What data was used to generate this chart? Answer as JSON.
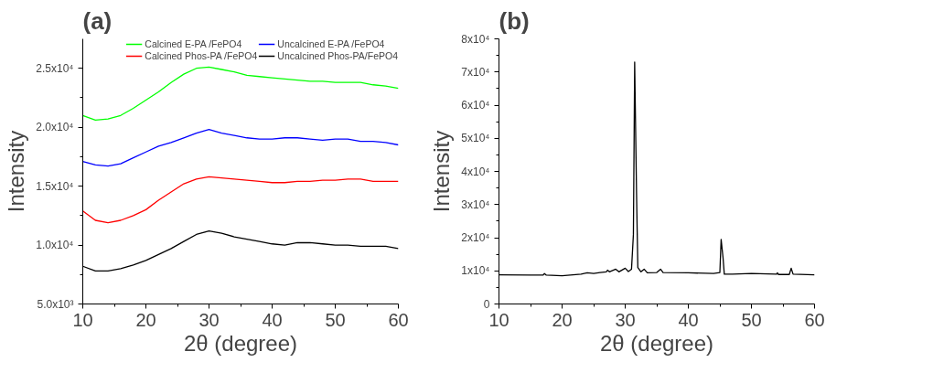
{
  "chart_data": [
    {
      "type": "line",
      "title": "(a)",
      "xlabel": "2θ (degree)",
      "ylabel": "Intensity",
      "xlim": [
        10,
        60
      ],
      "ylim": [
        5000,
        27500
      ],
      "xticks": [
        10,
        20,
        30,
        40,
        50,
        60
      ],
      "yticks": [
        {
          "value": 5000,
          "label": "5.0x10³"
        },
        {
          "value": 10000,
          "label": "1.0x10⁴"
        },
        {
          "value": 15000,
          "label": "1.5x10⁴"
        },
        {
          "value": 20000,
          "label": "2.0x10⁴"
        },
        {
          "value": 25000,
          "label": "2.5x10⁴"
        }
      ],
      "grid": false,
      "legend": "top right",
      "line_style": "solid",
      "marker": "none",
      "x": [
        10,
        12,
        14,
        16,
        18,
        20,
        22,
        24,
        26,
        28,
        30,
        32,
        34,
        36,
        38,
        40,
        42,
        44,
        46,
        48,
        50,
        52,
        54,
        56,
        58,
        60
      ],
      "series": [
        {
          "name": "Calcined E-PA /FePO4",
          "color": "#00ff00",
          "values": [
            21000,
            20600,
            20700,
            21000,
            21600,
            22300,
            23000,
            23800,
            24500,
            25000,
            25100,
            24900,
            24700,
            24400,
            24300,
            24200,
            24100,
            24000,
            23900,
            23900,
            23800,
            23800,
            23800,
            23600,
            23500,
            23300
          ]
        },
        {
          "name": "Uncalcined E-PA /FePO4",
          "color": "#0000ff",
          "values": [
            17100,
            16800,
            16700,
            16900,
            17400,
            17900,
            18400,
            18700,
            19100,
            19500,
            19800,
            19500,
            19300,
            19100,
            19000,
            19000,
            19100,
            19100,
            19000,
            18900,
            19000,
            19000,
            18800,
            18800,
            18700,
            18500
          ]
        },
        {
          "name": "Calcined Phos-PA /FePO4",
          "color": "#ff0000",
          "values": [
            12900,
            12100,
            11900,
            12100,
            12500,
            13000,
            13800,
            14500,
            15200,
            15600,
            15800,
            15700,
            15600,
            15500,
            15400,
            15300,
            15300,
            15400,
            15400,
            15500,
            15500,
            15600,
            15600,
            15400,
            15400,
            15400
          ]
        },
        {
          "name": "Uncalcined Phos-PA/FePO4",
          "color": "#000000",
          "values": [
            8200,
            7800,
            7800,
            8000,
            8300,
            8700,
            9200,
            9700,
            10300,
            10900,
            11200,
            11000,
            10700,
            10500,
            10300,
            10100,
            10000,
            10200,
            10200,
            10100,
            10000,
            10000,
            9900,
            9900,
            9900,
            9700
          ]
        }
      ]
    },
    {
      "type": "line",
      "title": "(b)",
      "xlabel": "2θ (degree)",
      "ylabel": "Intensity",
      "xlim": [
        10,
        60
      ],
      "ylim": [
        0,
        80000
      ],
      "xticks": [
        10,
        20,
        30,
        40,
        50,
        60
      ],
      "yticks": [
        0,
        {
          "value": 10000,
          "label": "1x10⁴"
        },
        {
          "value": 20000,
          "label": "2x10⁴"
        },
        {
          "value": 30000,
          "label": "3x10⁴"
        },
        {
          "value": 40000,
          "label": "4x10⁴"
        },
        {
          "value": 50000,
          "label": "5x10⁴"
        },
        {
          "value": 60000,
          "label": "6x10⁴"
        },
        {
          "value": 70000,
          "label": "7x10⁴"
        },
        {
          "value": 80000,
          "label": "8x10⁴"
        }
      ],
      "grid": false,
      "line_style": "solid",
      "marker": "none",
      "series": [
        {
          "color": "#000000",
          "x": [
            10,
            15,
            17,
            17.2,
            17.5,
            20,
            23,
            24,
            25,
            26,
            27,
            27.2,
            27.5,
            28.5,
            29,
            30,
            30.5,
            31,
            31.3,
            31.5,
            31.8,
            32,
            32.5,
            33,
            33.5,
            35,
            35.6,
            36,
            40,
            44,
            45,
            45.2,
            45.5,
            45.7,
            47,
            50,
            54,
            54.1,
            54.3,
            56,
            56.3,
            56.6,
            60
          ],
          "values": [
            8800,
            8700,
            8700,
            9200,
            8700,
            8500,
            9000,
            9400,
            9200,
            9500,
            9700,
            10200,
            9700,
            10500,
            9700,
            10800,
            9800,
            10500,
            21000,
            73000,
            33000,
            11000,
            9700,
            10500,
            9400,
            9500,
            10500,
            9500,
            9400,
            9200,
            9500,
            19500,
            14000,
            9000,
            9000,
            9200,
            9000,
            9400,
            8900,
            8900,
            10800,
            9000,
            8800
          ]
        }
      ]
    }
  ]
}
